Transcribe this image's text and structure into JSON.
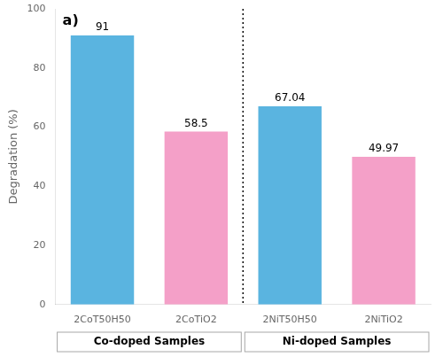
{
  "chart_data": {
    "type": "bar",
    "categories": [
      "2CoT50H50",
      "2CoTiO2",
      "2NiT50H50",
      "2NiTiO2"
    ],
    "values": [
      91,
      58.5,
      67.04,
      49.97
    ],
    "colors": [
      "#5ab4e0",
      "#f4a0c8",
      "#5ab4e0",
      "#f4a0c8"
    ],
    "ylabel": "Degradation (%)",
    "ylim": [
      0,
      100
    ],
    "yticks": [
      0,
      20,
      40,
      60,
      80,
      100
    ],
    "grid": false,
    "data_labels": true,
    "annotation": "a)",
    "groups": [
      {
        "label": "Co-doped Samples",
        "categories": [
          "2CoT50H50",
          "2CoTiO2"
        ]
      },
      {
        "label": "Ni-doped Samples",
        "categories": [
          "2NiT50H50",
          "2NiTiO2"
        ]
      }
    ]
  }
}
